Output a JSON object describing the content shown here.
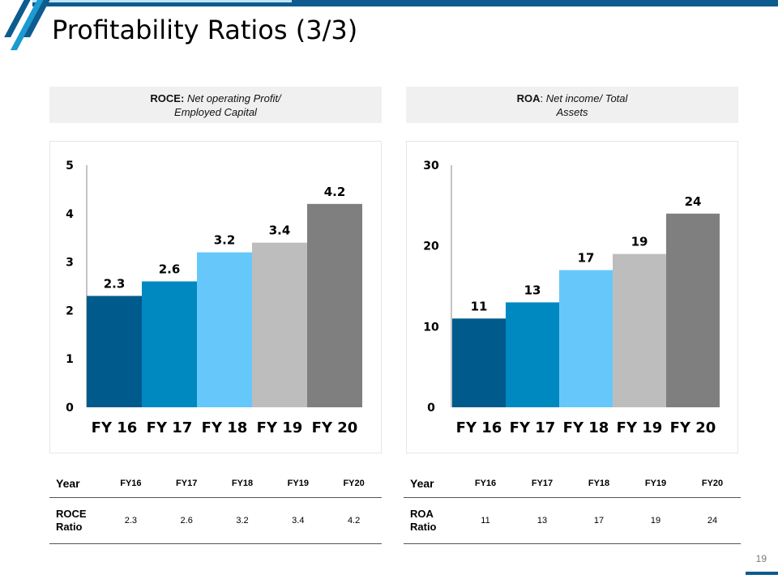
{
  "title": "Profitability Ratios (3/3)",
  "page_number": "19",
  "colors": {
    "accent_dark": "#0d5b8f",
    "accent_light": "#1b9bd1",
    "bars": [
      "#005a8c",
      "#0088c0",
      "#66c8fa",
      "#bdbdbd",
      "#7f7f7f"
    ]
  },
  "roce_header": {
    "bold": "ROCE:",
    "italic1": "Net operating Profit/",
    "italic2": "Employed Capital"
  },
  "roa_header": {
    "bold": "ROA",
    "sep": ":",
    "italic1": "Net income/ Total",
    "italic2": "Assets"
  },
  "chart_data": [
    {
      "type": "bar",
      "name": "ROCE",
      "categories": [
        "FY 16",
        "FY 17",
        "FY 18",
        "FY 19",
        "FY 20"
      ],
      "values": [
        2.3,
        2.6,
        3.2,
        3.4,
        4.2
      ],
      "labels": [
        "2.3",
        "2.6",
        "3.2",
        "3.4",
        "4.2"
      ],
      "ylim": [
        0,
        5
      ],
      "yticks": [
        0,
        1,
        2,
        3,
        4,
        5
      ],
      "title": "",
      "xlabel": "",
      "ylabel": "",
      "grid": false
    },
    {
      "type": "bar",
      "name": "ROA",
      "categories": [
        "FY 16",
        "FY 17",
        "FY 18",
        "FY 19",
        "FY 20"
      ],
      "values": [
        11,
        13,
        17,
        19,
        24
      ],
      "labels": [
        "11",
        "13",
        "17",
        "19",
        "24"
      ],
      "ylim": [
        0,
        30
      ],
      "yticks": [
        0,
        10,
        20,
        30
      ],
      "title": "",
      "xlabel": "",
      "ylabel": "",
      "grid": false
    }
  ],
  "tables": {
    "roce": {
      "header": [
        "Year",
        "FY16",
        "FY17",
        "FY18",
        "FY19",
        "FY20"
      ],
      "row_label": [
        "ROCE",
        "Ratio"
      ],
      "row": [
        "2.3",
        "2.6",
        "3.2",
        "3.4",
        "4.2"
      ]
    },
    "roa": {
      "header": [
        "Year",
        "FY16",
        "FY17",
        "FY18",
        "FY19",
        "FY20"
      ],
      "row_label": [
        "ROA",
        "Ratio"
      ],
      "row": [
        "11",
        "13",
        "17",
        "19",
        "24"
      ]
    }
  }
}
